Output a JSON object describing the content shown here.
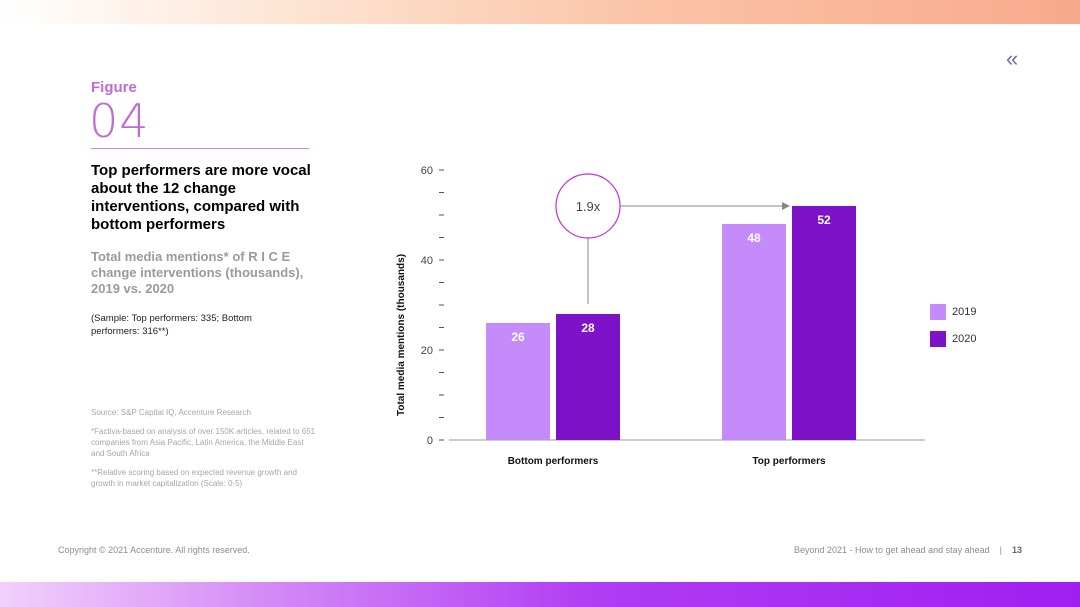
{
  "colors": {
    "series_2019": "#c58bfa",
    "series_2020": "#7e12c9",
    "accent": "#c06ad6"
  },
  "header": {
    "back_icon": "double-chevron-left-icon",
    "back_glyph": "«"
  },
  "figure": {
    "label": "Figure",
    "number": "04"
  },
  "text": {
    "title": "Top performers are more vocal about the 12 change interventions, compared with bottom performers",
    "subtitle": "Total media mentions* of R I C E change interventions (thousands), 2019 vs. 2020",
    "sample": "(Sample: Top performers: 335; Bottom performers: 316**)",
    "source": "Source: S&P Capital IQ, Accenture Research",
    "note1": "*Factiva-based on analysis of over 150K articles, related to 651 companies from Asia Pacific, Latin America, the Middle East and South Africa",
    "note2": "**Relative scoring based on expected revenue growth and growth in market capitalization (Scale: 0-5)"
  },
  "footer": {
    "copyright": "Copyright © 2021 Accenture. All rights reserved.",
    "report": "Beyond 2021 - How to get ahead and stay ahead",
    "separator": "|",
    "page": "13"
  },
  "chart_data": {
    "type": "bar",
    "categories": [
      "Bottom performers",
      "Top performers"
    ],
    "series": [
      {
        "name": "2019",
        "values": [
          26,
          48
        ]
      },
      {
        "name": "2020",
        "values": [
          28,
          52
        ]
      }
    ],
    "ylabel": "Total media mentions (thousands)",
    "xlabel": "",
    "ylim": [
      0,
      60
    ],
    "yticks": [
      0,
      20,
      40,
      60
    ],
    "grid": false,
    "legend_position": "right",
    "annotation": {
      "text": "1.9x",
      "from": "Bottom performers 2020",
      "to": "Top performers 2020"
    }
  }
}
